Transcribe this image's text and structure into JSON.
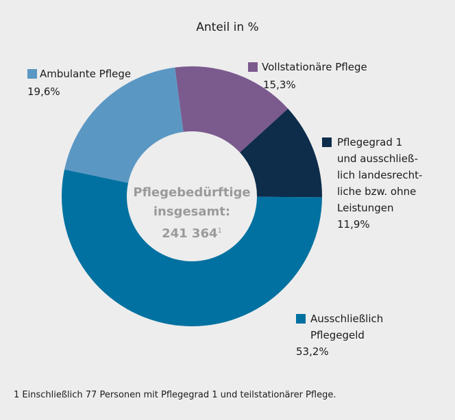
{
  "chart_data": {
    "type": "donut",
    "title": "Anteil in %",
    "categories": [
      "Vollstationäre Pflege",
      "Pflegegrad 1\nund ausschließ-\nlich landesrecht-\nliche bzw. ohne\nLeistungen",
      "Ausschließlich\nPflegegeld",
      "Ambulante Pflege"
    ],
    "values": [
      15.3,
      11.9,
      53.2,
      19.6
    ],
    "value_labels": [
      "15,3%",
      "11,9%",
      "53,2%",
      "19,6%"
    ],
    "colors": [
      "#7b5a8e",
      "#0d2d4b",
      "#0071a0",
      "#5b97c3"
    ],
    "center_label": "Pflegebedürftige\ninsgesamt:",
    "center_value": "241 364",
    "center_footnote_mark": "1",
    "footnote": "1 Einschließlich 77 Personen mit Pflegegrad 1 und teilstationärer Pflege."
  }
}
